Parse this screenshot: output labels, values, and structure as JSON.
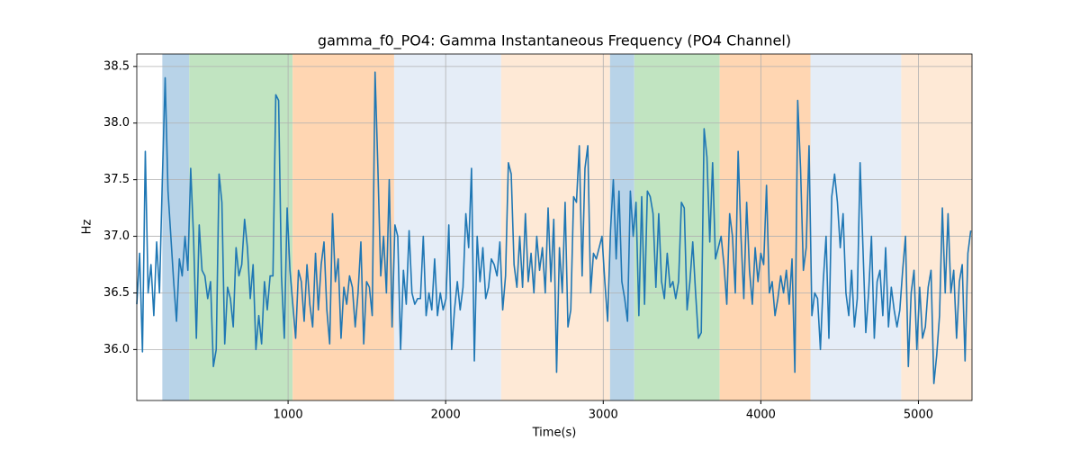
{
  "chart_data": {
    "type": "line",
    "title": "gamma_f0_PO4: Gamma Instantaneous Frequency (PO4 Channel)",
    "xlabel": "Time(s)",
    "ylabel": "Hz",
    "xlim": [
      40,
      5340
    ],
    "ylim": [
      35.55,
      38.61
    ],
    "xticks": [
      1000,
      2000,
      3000,
      4000,
      5000
    ],
    "yticks": [
      {
        "value": 36,
        "label": "36.0"
      },
      36.5,
      {
        "value": 37,
        "label": "37.0"
      },
      37.5,
      {
        "value": 38,
        "label": "38.0"
      },
      38.5
    ],
    "grid": true,
    "spans": [
      {
        "start": 202,
        "end": 373,
        "color": "#b8d3e8"
      },
      {
        "start": 373,
        "end": 1029,
        "color": "#c1e4c1"
      },
      {
        "start": 1029,
        "end": 1673,
        "color": "#ffd6b2"
      },
      {
        "start": 1673,
        "end": 2352,
        "color": "#e5edf7"
      },
      {
        "start": 2352,
        "end": 3043,
        "color": "#fee9d6"
      },
      {
        "start": 3043,
        "end": 3197,
        "color": "#b8d3e8"
      },
      {
        "start": 3197,
        "end": 3739,
        "color": "#c1e4c1"
      },
      {
        "start": 3739,
        "end": 4315,
        "color": "#ffd6b2"
      },
      {
        "start": 4315,
        "end": 4891,
        "color": "#e5edf7"
      },
      {
        "start": 4891,
        "end": 5340,
        "color": "#fee9d6"
      }
    ],
    "x": [
      40,
      58,
      76,
      94,
      112,
      130,
      148,
      166,
      184,
      202,
      220,
      238,
      256,
      274,
      292,
      310,
      328,
      346,
      364,
      382,
      400,
      418,
      436,
      454,
      472,
      490,
      508,
      526,
      544,
      562,
      580,
      598,
      616,
      634,
      652,
      670,
      688,
      706,
      724,
      742,
      760,
      778,
      796,
      814,
      832,
      850,
      868,
      886,
      904,
      922,
      940,
      958,
      976,
      994,
      1012,
      1030,
      1048,
      1066,
      1084,
      1102,
      1120,
      1138,
      1156,
      1174,
      1192,
      1210,
      1228,
      1246,
      1264,
      1282,
      1300,
      1318,
      1336,
      1354,
      1372,
      1390,
      1408,
      1426,
      1444,
      1462,
      1480,
      1498,
      1516,
      1534,
      1552,
      1570,
      1588,
      1606,
      1624,
      1642,
      1660,
      1678,
      1696,
      1714,
      1732,
      1750,
      1768,
      1786,
      1804,
      1822,
      1840,
      1858,
      1876,
      1894,
      1912,
      1930,
      1948,
      1966,
      1984,
      2002,
      2020,
      2038,
      2056,
      2074,
      2092,
      2110,
      2128,
      2146,
      2164,
      2182,
      2200,
      2218,
      2236,
      2254,
      2272,
      2290,
      2308,
      2326,
      2344,
      2362,
      2380,
      2398,
      2416,
      2434,
      2452,
      2470,
      2488,
      2506,
      2524,
      2542,
      2560,
      2578,
      2596,
      2614,
      2632,
      2650,
      2668,
      2686,
      2704,
      2722,
      2740,
      2758,
      2776,
      2794,
      2812,
      2830,
      2848,
      2866,
      2884,
      2902,
      2920,
      2938,
      2956,
      2974,
      2992,
      3010,
      3028,
      3046,
      3064,
      3082,
      3100,
      3118,
      3136,
      3154,
      3172,
      3190,
      3208,
      3226,
      3244,
      3262,
      3280,
      3298,
      3316,
      3334,
      3352,
      3370,
      3388,
      3406,
      3424,
      3442,
      3460,
      3478,
      3496,
      3514,
      3532,
      3550,
      3568,
      3586,
      3604,
      3622,
      3640,
      3658,
      3676,
      3694,
      3712,
      3730,
      3748,
      3766,
      3784,
      3802,
      3820,
      3838,
      3856,
      3874,
      3892,
      3910,
      3928,
      3946,
      3964,
      3982,
      4000,
      4018,
      4036,
      4054,
      4072,
      4090,
      4108,
      4126,
      4144,
      4162,
      4180,
      4198,
      4216,
      4234,
      4252,
      4270,
      4288,
      4306,
      4324,
      4342,
      4360,
      4378,
      4396,
      4414,
      4432,
      4450,
      4468,
      4486,
      4504,
      4522,
      4540,
      4558,
      4576,
      4594,
      4612,
      4630,
      4648,
      4666,
      4684,
      4702,
      4720,
      4738,
      4756,
      4774,
      4792,
      4810,
      4828,
      4846,
      4864,
      4882,
      4900,
      4918,
      4936,
      4954,
      4972,
      4990,
      5008,
      5026,
      5044,
      5062,
      5080,
      5098,
      5116,
      5134,
      5152,
      5170,
      5188,
      5206,
      5224,
      5242,
      5260,
      5278,
      5296,
      5314,
      5332
    ],
    "series": [
      {
        "color": "#1f77b4",
        "values": [
          36.4,
          36.85,
          35.98,
          37.75,
          36.5,
          36.75,
          36.3,
          36.95,
          36.5,
          37.5,
          38.4,
          37.4,
          37.0,
          36.6,
          36.25,
          36.8,
          36.65,
          37.0,
          36.7,
          37.6,
          37.0,
          36.1,
          37.1,
          36.7,
          36.65,
          36.45,
          36.6,
          35.85,
          36.0,
          37.55,
          37.3,
          36.05,
          36.55,
          36.45,
          36.2,
          36.9,
          36.65,
          36.75,
          37.15,
          36.9,
          36.45,
          36.75,
          36.0,
          36.3,
          36.05,
          36.6,
          36.35,
          36.65,
          36.65,
          38.25,
          38.2,
          36.65,
          36.1,
          37.25,
          36.7,
          36.4,
          36.1,
          36.7,
          36.6,
          36.25,
          36.75,
          36.4,
          36.2,
          36.85,
          36.35,
          36.75,
          36.95,
          36.35,
          36.05,
          37.2,
          36.6,
          36.8,
          36.1,
          36.55,
          36.4,
          36.65,
          36.55,
          36.2,
          36.5,
          36.95,
          36.05,
          36.6,
          36.55,
          36.3,
          38.45,
          37.6,
          36.65,
          37.0,
          36.5,
          37.5,
          36.2,
          37.1,
          37.0,
          36.0,
          36.7,
          36.4,
          37.05,
          36.5,
          36.4,
          36.45,
          36.45,
          37.0,
          36.3,
          36.5,
          36.35,
          36.8,
          36.3,
          36.5,
          36.35,
          36.45,
          37.1,
          36.0,
          36.35,
          36.6,
          36.35,
          36.55,
          37.2,
          36.9,
          37.6,
          35.9,
          37.0,
          36.6,
          36.9,
          36.45,
          36.55,
          36.8,
          36.75,
          36.65,
          36.95,
          36.35,
          36.65,
          37.65,
          37.55,
          36.75,
          36.55,
          37.0,
          36.55,
          37.2,
          36.6,
          36.85,
          36.5,
          37.0,
          36.7,
          36.9,
          36.5,
          37.25,
          36.6,
          37.15,
          35.8,
          36.9,
          36.5,
          37.3,
          36.2,
          36.35,
          37.35,
          37.3,
          37.8,
          36.65,
          37.6,
          37.8,
          36.5,
          36.85,
          36.8,
          36.9,
          37.0,
          36.6,
          36.25,
          37.05,
          37.5,
          36.8,
          37.4,
          36.6,
          36.45,
          36.25,
          37.4,
          37.0,
          37.3,
          36.3,
          37.35,
          36.4,
          37.4,
          37.35,
          37.2,
          36.55,
          37.2,
          36.6,
          36.45,
          36.85,
          36.55,
          36.6,
          36.45,
          36.6,
          37.3,
          37.25,
          36.35,
          36.6,
          36.95,
          36.5,
          36.1,
          36.15,
          37.95,
          37.7,
          36.95,
          37.65,
          36.8,
          36.9,
          37.0,
          36.75,
          36.4,
          37.2,
          37.0,
          36.5,
          37.75,
          37.0,
          36.45,
          37.3,
          36.7,
          36.4,
          36.9,
          36.6,
          36.85,
          36.75,
          37.45,
          36.5,
          36.6,
          36.3,
          36.45,
          36.65,
          36.5,
          36.7,
          36.4,
          36.8,
          35.8,
          38.2,
          37.6,
          36.7,
          36.9,
          37.8,
          36.3,
          36.5,
          36.45,
          36.0,
          36.6,
          37.0,
          36.1,
          37.35,
          37.55,
          37.3,
          36.9,
          37.2,
          36.5,
          36.3,
          36.7,
          36.2,
          36.45,
          37.65,
          36.9,
          36.15,
          36.5,
          37.0,
          36.1,
          36.6,
          36.7,
          36.3,
          36.9,
          36.2,
          36.55,
          36.35,
          36.2,
          36.35,
          36.7,
          37.0,
          35.85,
          36.5,
          36.7,
          36.0,
          36.55,
          36.1,
          36.2,
          36.55,
          36.7,
          35.7,
          35.95,
          36.3,
          37.25,
          36.5,
          37.2,
          36.5,
          36.7,
          36.1,
          36.6,
          36.75,
          35.9,
          36.85,
          37.05
        ]
      }
    ]
  }
}
